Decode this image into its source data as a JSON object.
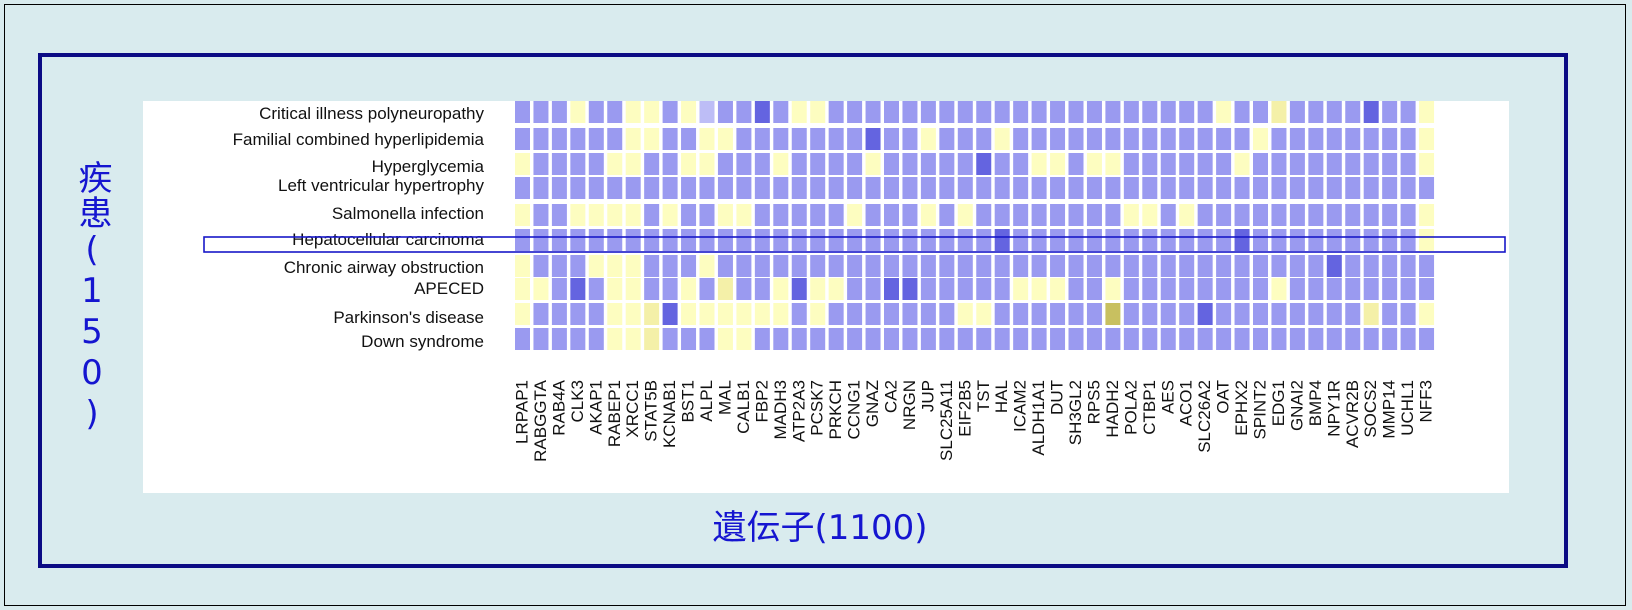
{
  "chart_data": {
    "type": "heatmap",
    "xlabel": "遺伝子(1100)",
    "ylabel": "疾患(150)",
    "rows": [
      "Critical illness polyneuropathy",
      "Familial combined hyperlipidemia",
      "Hyperglycemia",
      "Left ventricular hypertrophy",
      "Salmonella infection",
      "Hepatocellular carcinoma",
      "Chronic airway obstruction",
      "APECED",
      "Parkinson's disease",
      "Down syndrome"
    ],
    "highlighted_row": "Hepatocellular carcinoma",
    "genes": [
      "LRPAP1",
      "RABGGTA",
      "RAB4A",
      "CLK3",
      "AKAP1",
      "RABEP1",
      "XRCC1",
      "STAT5B",
      "KCNAB1",
      "BST1",
      "ALPL",
      "MAL",
      "CALB1",
      "FBP2",
      "MADH3",
      "ATP2A3",
      "PCSK7",
      "PRKCH",
      "CCNG1",
      "GNAZ",
      "CA2",
      "NRGN",
      "JUP",
      "SLC25A11",
      "EIF2B5",
      "TST",
      "HAL",
      "ICAM2",
      "ALDH1A1",
      "DUT",
      "SH3GL2",
      "RPS5",
      "HADH2",
      "POLA2",
      "CTBP1",
      "AES",
      "ACO1",
      "SLC26A2",
      "OAT",
      "EPHX2",
      "SPINT2",
      "EDG1",
      "GNAI2",
      "BMP4",
      "NPY1R",
      "ACVR2B",
      "SOCS2",
      "MMP14",
      "UCHL1",
      "NFF3"
    ],
    "palette": {
      "strong_blue": "#6464e0",
      "blue": "#9a9af0",
      "light_blue": "#bdbdf6",
      "light_yellow": "#fdfdc0",
      "yellow": "#f4f0a8",
      "olive": "#c8c060",
      "none": "#ffffff"
    },
    "scale_legend": "B = strong blue, b = blue, l = light blue, y = light yellow, Y = yellow, o = olive, . = none",
    "cells": [
      "bbbybbyybylbbBbyybbbbbbbbbbbbbbbbbbbbbybbYbbbbBbby",
      "bbbbbbyybbyybbbbbbbBbbybbbybbbbbbbbbbbbbybbbbbbbby",
      "ybbbbyybbyybbbybbbbybbbbbBbbyybyybbbbbbybbbbbbbbby",
      "bbbbbbbbbbbbbbbbbbbbbbbbbbbbbbbbbbbbbbbbbbbbbbbbbb",
      "ybbyyyybybbyybbbbbybbbybybbbbbbbbyybybbbbbbbbbbbby",
      "bbbbbbbbbbbbbbbbbbbbbbbbbbBbbbbbbbbbbbbBbbbbbbbbby",
      "ybbbyyybbbybbbbbbbbbbbbbbbbbbbbbbbbbbbbbbbbbBbbbbb",
      "yybBbyybbybYbbyByybbBBbbbbbyyybbybbbbbbbbybbbbbbbb",
      "ybbbbyyYByyyyyybybbbbbbbyybbbbbbobbbbBbbbbbbbbYbby",
      "bbbbbyyYbbbyybbbbbbbbbbbbbbbbbbbbbbbbbbbbbbbbbbbbb"
    ]
  }
}
